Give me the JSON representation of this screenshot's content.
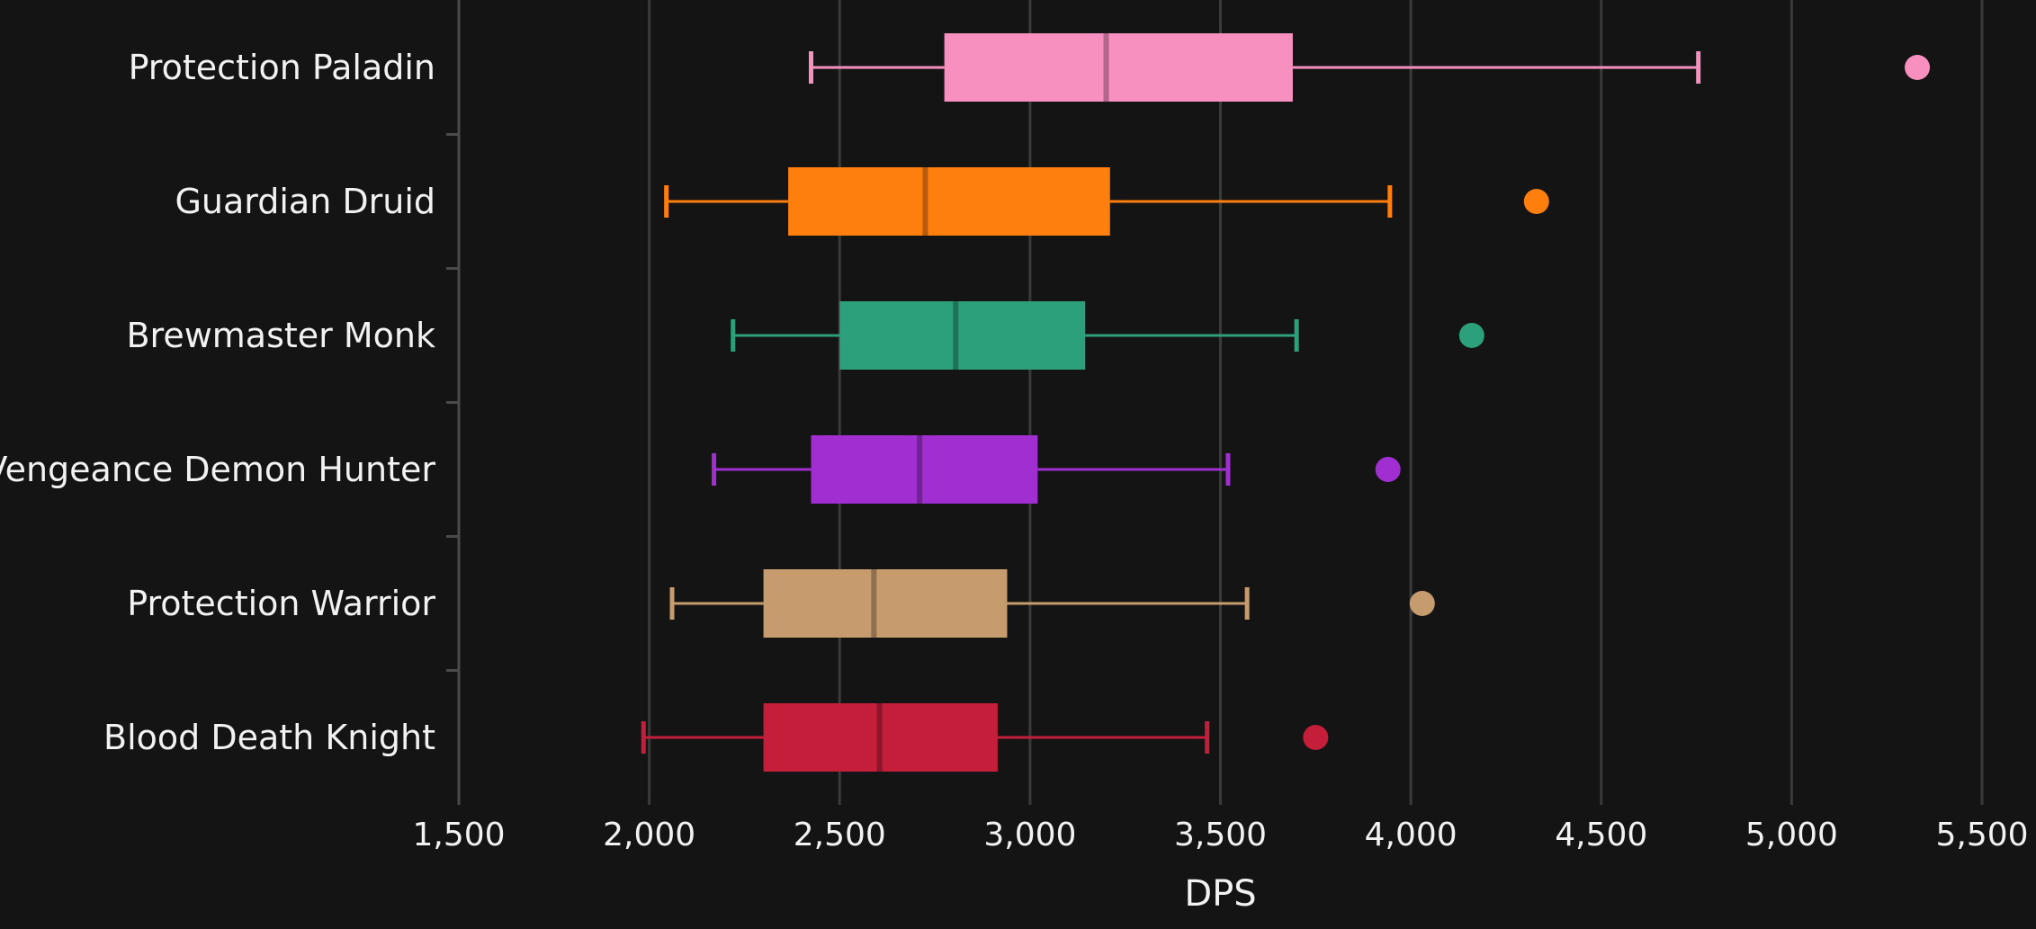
{
  "chart_data": {
    "type": "boxplot",
    "orientation": "horizontal",
    "title": "",
    "xlabel": "DPS",
    "ylabel": "",
    "xlim": [
      1500,
      5500
    ],
    "xticks": [
      1500,
      2000,
      2500,
      3000,
      3500,
      4000,
      4500,
      5000,
      5500
    ],
    "xtick_labels": [
      "1,500",
      "2,000",
      "2,500",
      "3,000",
      "3,500",
      "4,000",
      "4,500",
      "5,000",
      "5,500"
    ],
    "grid": "vertical",
    "categories": [
      "Protection Paladin",
      "Guardian Druid",
      "Brewmaster Monk",
      "Vengeance Demon Hunter",
      "Protection Warrior",
      "Blood Death Knight"
    ],
    "series": [
      {
        "name": "Protection Paladin",
        "color": "#f78fbf",
        "min": 2425,
        "q1": 2775,
        "median": 3200,
        "q3": 3690,
        "max": 4755,
        "outliers": [
          5330
        ]
      },
      {
        "name": "Guardian Druid",
        "color": "#ff7f0e",
        "min": 2045,
        "q1": 2365,
        "median": 2725,
        "q3": 3210,
        "max": 3945,
        "outliers": [
          4330
        ]
      },
      {
        "name": "Brewmaster Monk",
        "color": "#2ca07a",
        "min": 2220,
        "q1": 2500,
        "median": 2805,
        "q3": 3145,
        "max": 3700,
        "outliers": [
          4160
        ]
      },
      {
        "name": "Vengeance Demon Hunter",
        "color": "#a02ed0",
        "min": 2170,
        "q1": 2425,
        "median": 2710,
        "q3": 3020,
        "max": 3520,
        "outliers": [
          3940
        ]
      },
      {
        "name": "Protection Warrior",
        "color": "#c69b6d",
        "min": 2060,
        "q1": 2300,
        "median": 2590,
        "q3": 2940,
        "max": 3570,
        "outliers": [
          4030
        ]
      },
      {
        "name": "Blood Death Knight",
        "color": "#c41e3a",
        "min": 1985,
        "q1": 2300,
        "median": 2605,
        "q3": 2915,
        "max": 3465,
        "outliers": [
          3750
        ]
      }
    ]
  }
}
